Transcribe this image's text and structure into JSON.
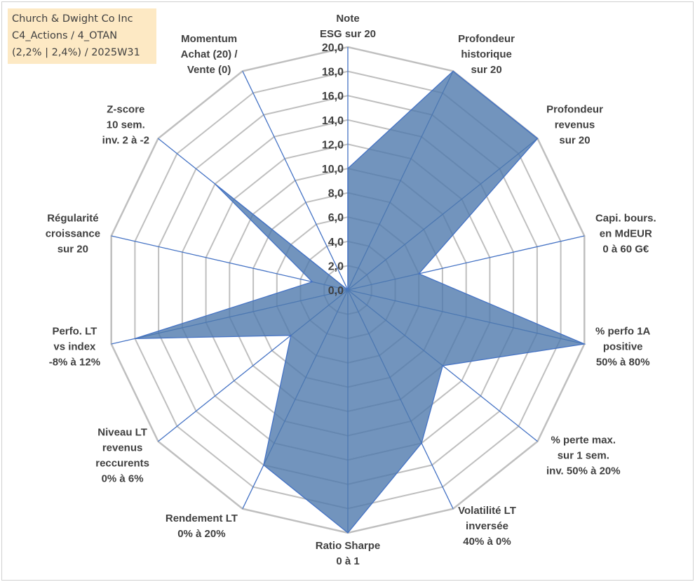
{
  "info_box": {
    "lines": [
      "Church & Dwight Co Inc",
      "C4_Actions / 4_OTAN",
      "(2,2% | 2,4%) / 2025W31"
    ]
  },
  "colors": {
    "grid": "#bfbfbf",
    "spoke": "#4472c4",
    "fill": "#4f79ad",
    "text": "#404040",
    "info_bg": "#fde9c4"
  },
  "chart_data": {
    "type": "radar",
    "title": "",
    "rmin": 0,
    "rmax": 20,
    "tick_step": 2,
    "tick_labels": [
      "0,0",
      "2,0",
      "4,0",
      "6,0",
      "8,0",
      "10,0",
      "12,0",
      "14,0",
      "16,0",
      "18,0",
      "20,0"
    ],
    "grid": true,
    "axes": [
      {
        "label": [
          "Note",
          "ESG sur 20"
        ],
        "value": 10
      },
      {
        "label": [
          "Profondeur",
          "historique",
          "sur 20"
        ],
        "value": 20
      },
      {
        "label": [
          "Profondeur",
          "revenus",
          "sur 20"
        ],
        "value": 20
      },
      {
        "label": [
          "Capi. bours.",
          "en MdEUR",
          "0 à 60 G€"
        ],
        "value": 6
      },
      {
        "label": [
          "% perfo 1A",
          "positive",
          "50% à 80%"
        ],
        "value": 20
      },
      {
        "label": [
          "% perte max.",
          "sur 1 sem.",
          "inv. 50% à 20%"
        ],
        "value": 10
      },
      {
        "label": [
          "Volatilité LT",
          "inversée",
          "40% à 0%"
        ],
        "value": 14
      },
      {
        "label": [
          "Ratio Sharpe",
          "0 à 1"
        ],
        "value": 20
      },
      {
        "label": [
          "Rendement LT",
          "0% à 20%"
        ],
        "value": 16
      },
      {
        "label": [
          "Niveau LT",
          "revenus",
          "reccurents",
          "0% à 6%"
        ],
        "value": 6
      },
      {
        "label": [
          "Perfo. LT",
          "vs index",
          "-8% à 12%"
        ],
        "value": 18
      },
      {
        "label": [
          "Régularité",
          "croissance",
          "sur 20"
        ],
        "value": 3
      },
      {
        "label": [
          "Z-score",
          "10 sem.",
          "inv. 2 à -2"
        ],
        "value": 14
      },
      {
        "label": [
          "Momentum",
          "Achat (20) /",
          "Vente (0)"
        ],
        "value": 0
      }
    ]
  }
}
